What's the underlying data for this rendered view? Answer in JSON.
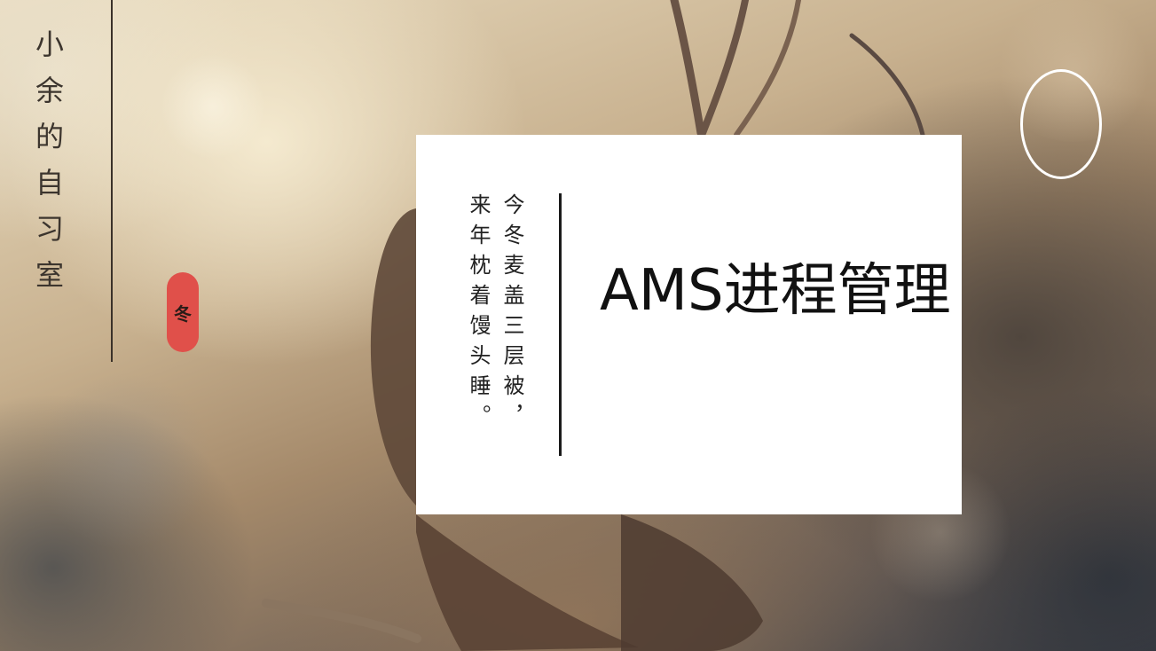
{
  "site": {
    "title": "小余的自习室",
    "seal_text": "冬"
  },
  "card": {
    "poem": {
      "line1": "今冬麦盖三层被，",
      "line2": "来年枕着馒头睡。"
    },
    "title": "AMS进程管理"
  },
  "colors": {
    "seal": "#e0504a",
    "card_background": "#ffffff",
    "text_dark": "#111111"
  }
}
